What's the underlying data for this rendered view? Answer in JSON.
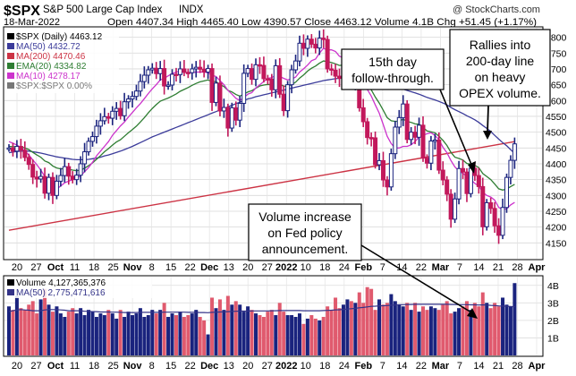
{
  "header": {
    "symbol": "$SPX",
    "name": "S&P 500 Large Cap Index",
    "exchange": "INDX",
    "date": "18-Mar-2022",
    "ohlc": "Open 4407.34  High 4465.40  Low 4390.57  Close 4463.12  Volume 4.1B  Chg +51.45 (+1.17%)",
    "watermark": "@ StockCharts.com"
  },
  "legend": {
    "items": [
      {
        "text": "$SPX (Daily) 4463.12",
        "color": "#000000"
      },
      {
        "text": "MA(50) 4432.72",
        "color": "#3b3b9a"
      },
      {
        "text": "MA(200) 4470.46",
        "color": "#cc3344"
      },
      {
        "text": "EMA(20) 4334.82",
        "color": "#2e7d32"
      },
      {
        "text": "MA(10) 4278.17",
        "color": "#cc33cc"
      },
      {
        "text": "$SPX:$SPX 0.00%",
        "color": "#777777"
      }
    ]
  },
  "volume_legend": {
    "items": [
      {
        "text": "Volume 4,127,365,376",
        "color": "#000000"
      },
      {
        "text": "MA(50) 2,775,471,616",
        "color": "#333388"
      }
    ]
  },
  "annotations": {
    "rallies": [
      "Rallies into",
      "200-day line",
      "on heavy",
      "OPEX volume."
    ],
    "followthrough": [
      "15th day",
      "follow-through."
    ],
    "volume": [
      "Volume increase",
      "on Fed policy",
      "announcement."
    ]
  },
  "chart_data": [
    {
      "type": "candlestick",
      "title": "$SPX S&P 500 Large Cap Index INDX",
      "ylim": [
        4100,
        4830
      ],
      "y_ticks": [
        4150,
        4200,
        4250,
        4300,
        4350,
        4400,
        4450,
        4500,
        4550,
        4600,
        4650,
        4700,
        4750,
        4800
      ],
      "x_tick_labels": [
        "20",
        "27",
        "Oct",
        "11",
        "18",
        "25",
        "Nov",
        "8",
        "15",
        "22",
        "Dec",
        "13",
        "20",
        "27",
        "2022",
        "10",
        "18",
        "24",
        "Feb",
        "7",
        "14",
        "22",
        "Mar",
        "7",
        "14",
        "21",
        "28",
        "Apr"
      ],
      "month_labels": [
        "Oct",
        "Nov",
        "Dec",
        "2022",
        "Feb",
        "Mar",
        "Apr"
      ],
      "grid": true,
      "close": [
        4450,
        4440,
        4455,
        4443,
        4420,
        4398,
        4358,
        4352,
        4360,
        4307,
        4357,
        4300,
        4345,
        4363,
        4391,
        4361,
        4350,
        4364,
        4400,
        4438,
        4471,
        4486,
        4519,
        4536,
        4549,
        4544,
        4566,
        4575,
        4552,
        4596,
        4605,
        4613,
        4630,
        4660,
        4680,
        4697,
        4702,
        4685,
        4701,
        4646,
        4649,
        4683,
        4682,
        4700,
        4689,
        4688,
        4700,
        4705,
        4699,
        4690,
        4701,
        4594,
        4655,
        4567,
        4578,
        4513,
        4577,
        4538,
        4591,
        4686,
        4701,
        4667,
        4713,
        4711,
        4669,
        4668,
        4634,
        4710,
        4620,
        4568,
        4650,
        4697,
        4725,
        4781,
        4765,
        4794,
        4778,
        4766,
        4797,
        4793,
        4700,
        4696,
        4677,
        4670,
        4713,
        4726,
        4659,
        4663,
        4577,
        4533,
        4483,
        4482,
        4397,
        4410,
        4349,
        4327,
        4432,
        4516,
        4546,
        4589,
        4477,
        4500,
        4484,
        4522,
        4418,
        4402,
        4472,
        4475,
        4380,
        4349,
        4304,
        4225,
        4289,
        4385,
        4374,
        4306,
        4386,
        4363,
        4328,
        4201,
        4277,
        4259,
        4204,
        4174,
        4262,
        4357,
        4411,
        4463
      ],
      "ma50": [
        4435,
        4437,
        4439,
        4440,
        4440,
        4440,
        4438,
        4436,
        4434,
        4431,
        4428,
        4425,
        4422,
        4420,
        4418,
        4416,
        4414,
        4413,
        4413,
        4413,
        4414,
        4416,
        4418,
        4421,
        4425,
        4428,
        4432,
        4436,
        4440,
        4445,
        4450,
        4455,
        4461,
        4467,
        4473,
        4479,
        4485,
        4490,
        4495,
        4500,
        4505,
        4510,
        4515,
        4520,
        4525,
        4530,
        4535,
        4540,
        4545,
        4550,
        4555,
        4560,
        4565,
        4570,
        4575,
        4580,
        4585,
        4590,
        4595,
        4600,
        4605,
        4608,
        4612,
        4615,
        4618,
        4621,
        4624,
        4627,
        4630,
        4633,
        4636,
        4639,
        4642,
        4645,
        4648,
        4651,
        4654,
        4657,
        4660,
        4663,
        4665,
        4667,
        4669,
        4670,
        4671,
        4672,
        4672,
        4672,
        4671,
        4669,
        4667,
        4664,
        4660,
        4656,
        4652,
        4647,
        4643,
        4640,
        4638,
        4636,
        4632,
        4628,
        4624,
        4620,
        4615,
        4610,
        4606,
        4602,
        4597,
        4592,
        4586,
        4578,
        4571,
        4565,
        4559,
        4552,
        4546,
        4539,
        4531,
        4521,
        4512,
        4502,
        4490,
        4478,
        4467,
        4457,
        4445,
        4433
      ],
      "ema20": [
        4455,
        4454,
        4454,
        4453,
        4450,
        4445,
        4436,
        4428,
        4421,
        4409,
        4404,
        4393,
        4387,
        4384,
        4385,
        4383,
        4380,
        4378,
        4380,
        4386,
        4394,
        4403,
        4414,
        4426,
        4438,
        4448,
        4459,
        4469,
        4476,
        4487,
        4498,
        4508,
        4519,
        4532,
        4546,
        4561,
        4575,
        4587,
        4598,
        4603,
        4608,
        4614,
        4621,
        4629,
        4635,
        4641,
        4648,
        4654,
        4659,
        4662,
        4665,
        4660,
        4660,
        4651,
        4644,
        4632,
        4627,
        4619,
        4614,
        4620,
        4627,
        4631,
        4639,
        4646,
        4649,
        4651,
        4650,
        4656,
        4653,
        4645,
        4646,
        4650,
        4658,
        4671,
        4681,
        4693,
        4702,
        4709,
        4718,
        4725,
        4723,
        4720,
        4716,
        4711,
        4712,
        4713,
        4707,
        4702,
        4688,
        4671,
        4651,
        4634,
        4611,
        4592,
        4569,
        4546,
        4536,
        4534,
        4535,
        4541,
        4534,
        4531,
        4526,
        4525,
        4515,
        4504,
        4501,
        4498,
        4487,
        4474,
        4458,
        4436,
        4421,
        4417,
        4412,
        4401,
        4399,
        4395,
        4388,
        4369,
        4360,
        4350,
        4336,
        4321,
        4317,
        4320,
        4328,
        4335
      ],
      "ma10": [
        4470,
        4465,
        4459,
        4452,
        4440,
        4428,
        4412,
        4397,
        4380,
        4360,
        4345,
        4330,
        4320,
        4330,
        4340,
        4345,
        4350,
        4355,
        4362,
        4375,
        4388,
        4405,
        4425,
        4440,
        4455,
        4470,
        4490,
        4505,
        4520,
        4532,
        4548,
        4562,
        4577,
        4590,
        4606,
        4622,
        4637,
        4650,
        4665,
        4670,
        4678,
        4685,
        4690,
        4693,
        4690,
        4688,
        4688,
        4690,
        4690,
        4690,
        4688,
        4680,
        4676,
        4663,
        4650,
        4632,
        4620,
        4607,
        4600,
        4610,
        4620,
        4625,
        4640,
        4650,
        4660,
        4670,
        4672,
        4680,
        4676,
        4670,
        4665,
        4668,
        4674,
        4690,
        4700,
        4712,
        4726,
        4731,
        4750,
        4765,
        4760,
        4760,
        4755,
        4740,
        4735,
        4730,
        4718,
        4710,
        4688,
        4660,
        4635,
        4614,
        4586,
        4560,
        4524,
        4487,
        4464,
        4450,
        4450,
        4455,
        4455,
        4460,
        4470,
        4485,
        4490,
        4495,
        4498,
        4490,
        4476,
        4452,
        4435,
        4410,
        4390,
        4377,
        4370,
        4360,
        4350,
        4338,
        4330,
        4310,
        4300,
        4295,
        4285,
        4262,
        4255,
        4258,
        4270,
        4278
      ],
      "ma200_range": [
        4190,
        4470
      ]
    },
    {
      "type": "bar",
      "title": "Volume",
      "ylim": [
        0,
        4500000000
      ],
      "y_tick_labels": [
        "1B",
        "2B",
        "3B",
        "4B"
      ],
      "values": [
        2.8,
        2.6,
        3.4,
        2.7,
        2.6,
        2.9,
        3.1,
        2.4,
        3.2,
        3.8,
        2.9,
        2.5,
        2.8,
        2.4,
        2.2,
        2.5,
        2.7,
        2.4,
        2.7,
        2.3,
        2.6,
        2.5,
        2.2,
        2.4,
        2.3,
        2.6,
        2.4,
        2.1,
        2.6,
        2.2,
        2.5,
        2.3,
        2.4,
        2.7,
        2.2,
        2.3,
        2.6,
        2.4,
        2.6,
        3.0,
        2.2,
        2.4,
        2.3,
        2.5,
        2.2,
        2.3,
        2.4,
        2.6,
        2.2,
        2.0,
        1.2,
        3.3,
        2.7,
        3.2,
        2.6,
        3.4,
        2.9,
        3.1,
        2.9,
        2.5,
        2.8,
        2.6,
        2.4,
        2.3,
        2.2,
        2.5,
        2.6,
        2.3,
        3.0,
        2.5,
        2.3,
        2.3,
        2.2,
        2.4,
        1.8,
        2.1,
        2.3,
        2.1,
        2.0,
        2.2,
        2.8,
        2.6,
        3.3,
        2.7,
        2.9,
        3.2,
        3.1,
        3.0,
        3.6,
        3.0,
        3.9,
        3.8,
        2.6,
        3.2,
        2.9,
        3.0,
        3.5,
        3.1,
        2.9,
        2.8,
        3.0,
        2.6,
        3.0,
        2.5,
        2.8,
        2.6,
        2.8,
        2.7,
        2.6,
        2.9,
        3.1,
        2.4,
        2.5,
        2.7,
        2.8,
        3.1,
        2.6,
        3.0,
        2.8,
        3.6,
        3.0,
        2.7,
        3.0,
        2.8,
        3.3,
        2.9,
        2.8,
        4.13
      ],
      "ma50_values": [
        2.5,
        2.55,
        2.6,
        2.62,
        2.6,
        2.58,
        2.55,
        2.55,
        2.55,
        2.6,
        2.62,
        2.62,
        2.62,
        2.6,
        2.58,
        2.55,
        2.55,
        2.55,
        2.55,
        2.52,
        2.52,
        2.5,
        2.5,
        2.48,
        2.48,
        2.48,
        2.47,
        2.47,
        2.46,
        2.45,
        2.45,
        2.45,
        2.45,
        2.46,
        2.46,
        2.46,
        2.46,
        2.46,
        2.46,
        2.47,
        2.47,
        2.47,
        2.47,
        2.47,
        2.47,
        2.46,
        2.46,
        2.46,
        2.45,
        2.45,
        2.44,
        2.46,
        2.47,
        2.48,
        2.49,
        2.5,
        2.51,
        2.52,
        2.53,
        2.53,
        2.53,
        2.54,
        2.54,
        2.54,
        2.54,
        2.54,
        2.55,
        2.55,
        2.56,
        2.56,
        2.56,
        2.56,
        2.56,
        2.56,
        2.55,
        2.55,
        2.55,
        2.55,
        2.55,
        2.56,
        2.57,
        2.58,
        2.6,
        2.61,
        2.63,
        2.65,
        2.67,
        2.69,
        2.72,
        2.74,
        2.77,
        2.8,
        2.81,
        2.83,
        2.84,
        2.85,
        2.87,
        2.88,
        2.9,
        2.9,
        2.91,
        2.91,
        2.92,
        2.92,
        2.92,
        2.92,
        2.92,
        2.92,
        2.92,
        2.92,
        2.92,
        2.91,
        2.91,
        2.9,
        2.9,
        2.9,
        2.89,
        2.89,
        2.88,
        2.89,
        2.88,
        2.86,
        2.85,
        2.83,
        2.82,
        2.8,
        2.79,
        2.78
      ],
      "x_tick_labels": [
        "20",
        "27",
        "Oct",
        "11",
        "18",
        "25",
        "Nov",
        "8",
        "15",
        "22",
        "Dec",
        "13",
        "20",
        "27",
        "2022",
        "10",
        "18",
        "24",
        "Feb",
        "7",
        "14",
        "22",
        "Mar",
        "7",
        "14",
        "21",
        "28",
        "Apr"
      ]
    }
  ]
}
